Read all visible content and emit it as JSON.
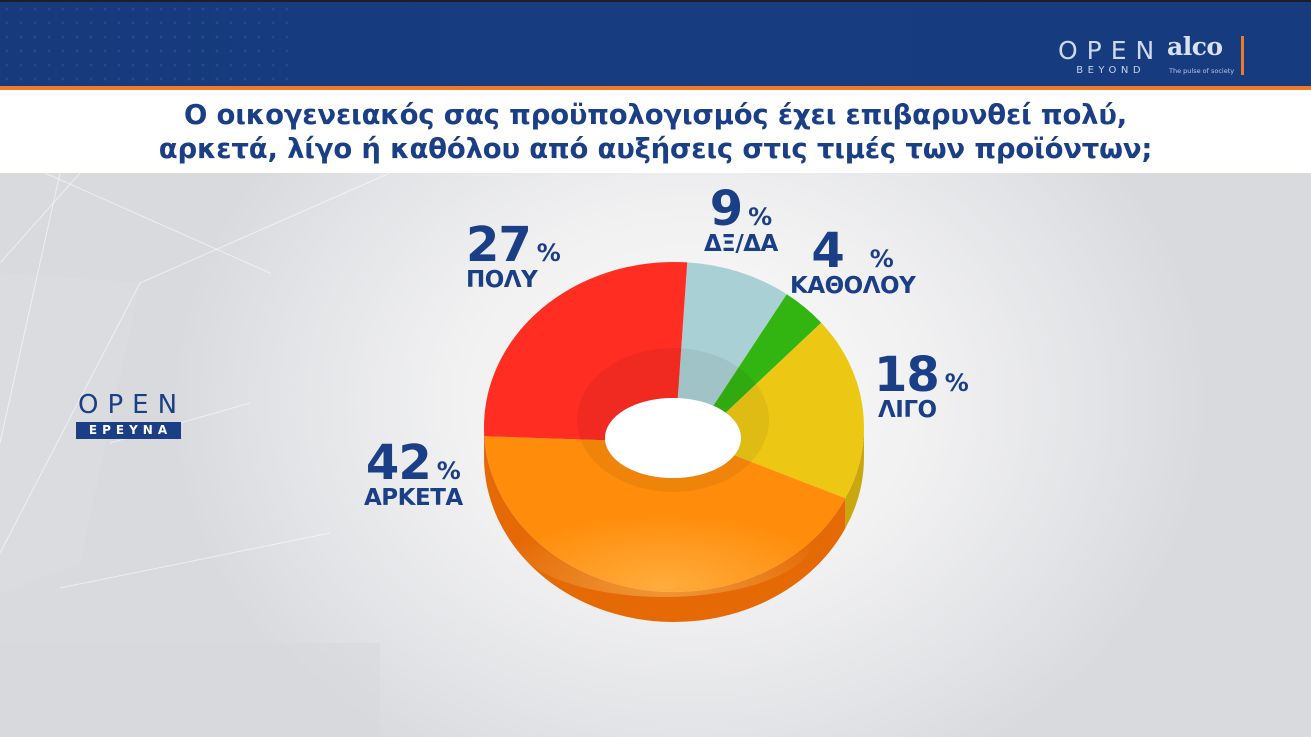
{
  "header": {
    "brand_left": {
      "word": "OPEN",
      "sub": "BEYOND"
    },
    "brand_right": {
      "word": "alco",
      "tagline": "The pulse of society"
    },
    "colors": {
      "header_blue": "#173c80",
      "accent_orange": "#ee7a2c",
      "text_blue": "#1b3f86"
    }
  },
  "title": {
    "line1": "Ο οικογενειακός σας προϋπολογισμός έχει επιβαρυνθεί πολύ,",
    "line2": "αρκετά, λίγο ή καθόλου από αυξήσεις στις τιμές των προϊόντων;"
  },
  "side_logo": {
    "word": "OPEN",
    "badge": "ΕΡΕΥΝΑ"
  },
  "chart_data": {
    "type": "pie",
    "variant": "3d-donut",
    "title": "Ο οικογενειακός σας προϋπολογισμός έχει επιβαρυνθεί πολύ, αρκετά, λίγο ή καθόλου από αυξήσεις στις τιμές των προϊόντων;",
    "unit": "%",
    "start_angle_deg": -86,
    "direction": "clockwise",
    "categories": [
      "ΔΞ/ΔΑ",
      "ΚΑΘΟΛΟΥ",
      "ΛΙΓΟ",
      "ΑΡΚΕΤΑ",
      "ΠΟΛΥ"
    ],
    "values": [
      9,
      4,
      18,
      42,
      27
    ],
    "colors": [
      "#a9d0d4",
      "#33b511",
      "#ecc815",
      "#ff8c0a",
      "#ff2d22"
    ],
    "side_colors": [
      "#86aeb2",
      "#268a0c",
      "#c9a80f",
      "#e56a05",
      "#d81f17"
    ],
    "legend": "data labels next to slices"
  },
  "labels": [
    {
      "value": "9",
      "pct": "%",
      "name": "ΔΞ/ΔΑ"
    },
    {
      "value": "4",
      "pct": "%",
      "name": "ΚΑΘΟΛΟΥ"
    },
    {
      "value": "18",
      "pct": "%",
      "name": "ΛΙΓΟ"
    },
    {
      "value": "42",
      "pct": "%",
      "name": "ΑΡΚΕΤΑ"
    },
    {
      "value": "27",
      "pct": "%",
      "name": "ΠΟΛΥ"
    }
  ]
}
